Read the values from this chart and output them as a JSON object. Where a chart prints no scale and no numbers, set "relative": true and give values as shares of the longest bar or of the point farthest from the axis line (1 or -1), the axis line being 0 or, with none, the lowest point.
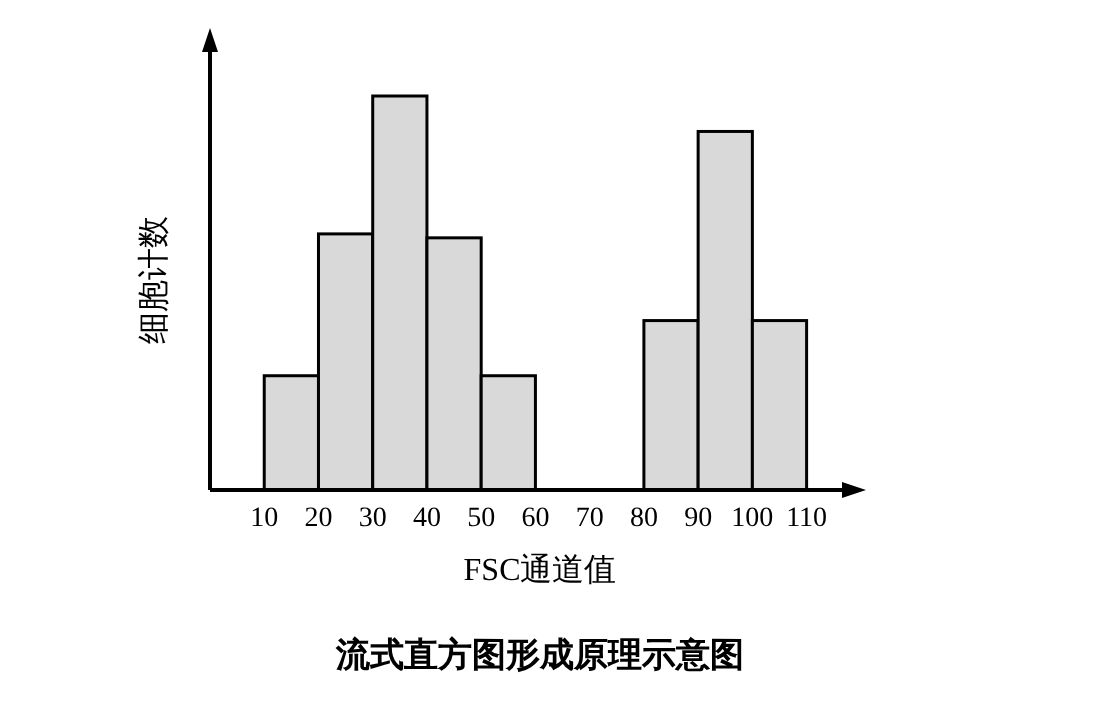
{
  "chart_data": {
    "type": "bar",
    "title": "流式直方图形成原理示意图",
    "xlabel": "FSC通道值",
    "ylabel": "细胞计数",
    "relative": true,
    "color": "#d9d9d9",
    "x": [
      15,
      25,
      35,
      45,
      55,
      65,
      75,
      85,
      95,
      105
    ],
    "values": [
      0.29,
      0.65,
      1,
      0.64,
      0.29,
      0,
      0,
      0.43,
      0.91,
      0.43
    ],
    "xlim": [
      0,
      118
    ],
    "xticks": [
      10,
      20,
      30,
      40,
      50,
      60,
      70,
      80,
      90,
      100,
      110
    ]
  }
}
